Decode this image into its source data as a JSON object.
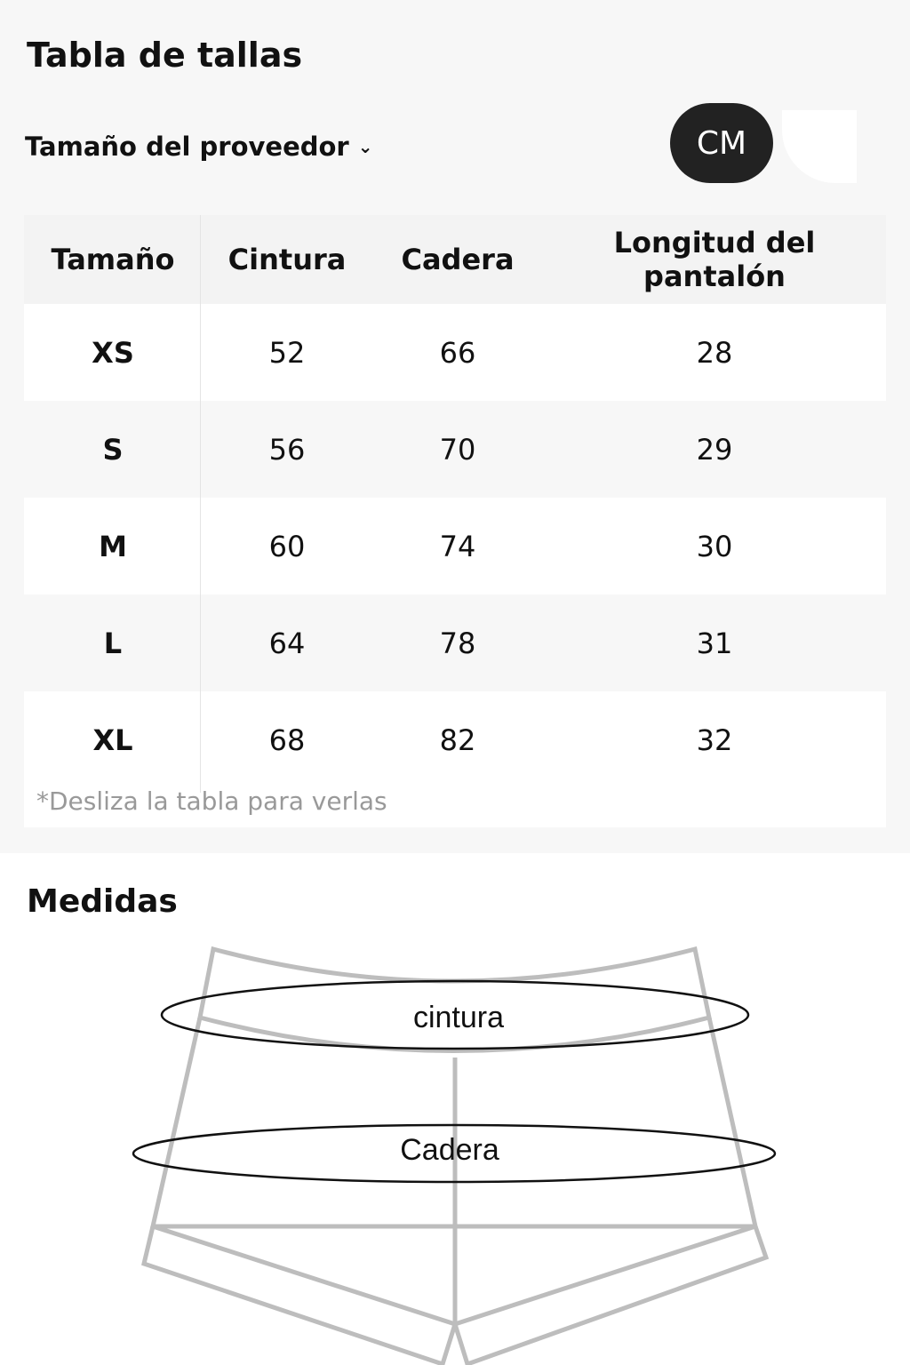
{
  "title": "Tabla de tallas",
  "supplier_size": {
    "label": "Tamaño del proveedor",
    "icon": "chevron-down-icon"
  },
  "unit_toggle": {
    "selected": "CM"
  },
  "table": {
    "headers": [
      "Tamaño",
      "Cintura",
      "Cadera",
      "Longitud del pantalón"
    ],
    "rows": [
      [
        "XS",
        "52",
        "66",
        "28"
      ],
      [
        "S",
        "56",
        "70",
        "29"
      ],
      [
        "M",
        "60",
        "74",
        "30"
      ],
      [
        "L",
        "64",
        "78",
        "31"
      ],
      [
        "XL",
        "68",
        "82",
        "32"
      ]
    ],
    "note": "*Desliza la tabla para verlas"
  },
  "measurements": {
    "title": "Medidas",
    "waist_label": "cintura",
    "hip_label": "Cadera"
  }
}
